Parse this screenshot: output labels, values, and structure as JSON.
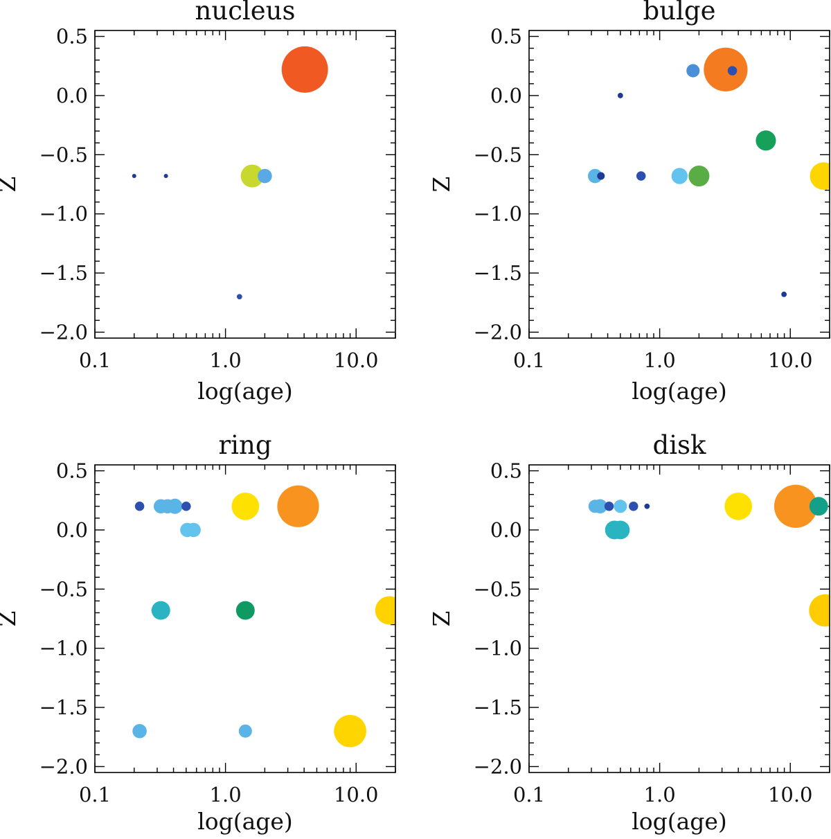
{
  "chart_data": [
    {
      "type": "scatter",
      "title": "nucleus",
      "xlabel": "log(age)",
      "ylabel": "Z",
      "xscale": "log",
      "xlim": [
        0.1,
        20.0
      ],
      "ylim": [
        -2.05,
        0.55
      ],
      "xticks": [
        {
          "value": 0.1,
          "label": "0.1"
        },
        {
          "value": 1.0,
          "label": "1.0"
        },
        {
          "value": 10.0,
          "label": "10.0"
        }
      ],
      "yticks": [
        {
          "value": 0.5,
          "label": "0.5"
        },
        {
          "value": 0.0,
          "label": "0.0"
        },
        {
          "value": -0.5,
          "label": "−0.5"
        },
        {
          "value": -1.0,
          "label": "−1.0"
        },
        {
          "value": -1.5,
          "label": "−1.5"
        },
        {
          "value": -2.0,
          "label": "−2.0"
        }
      ],
      "points": [
        {
          "age": 0.2,
          "z": -0.68,
          "weight": 0.3,
          "color": "#1f3a93"
        },
        {
          "age": 0.35,
          "z": -0.68,
          "weight": 0.3,
          "color": "#1f3a93"
        },
        {
          "age": 1.28,
          "z": -1.7,
          "weight": 0.5,
          "color": "#2c4fb0"
        },
        {
          "age": 1.6,
          "z": -0.68,
          "weight": 9,
          "color": "#c8d82e"
        },
        {
          "age": 2.0,
          "z": -0.68,
          "weight": 3.5,
          "color": "#5aa9e6"
        },
        {
          "age": 4.05,
          "z": 0.22,
          "weight": 37,
          "color": "#f05a22"
        }
      ]
    },
    {
      "type": "scatter",
      "title": "bulge",
      "xlabel": "log(age)",
      "ylabel": "Z",
      "xscale": "log",
      "xlim": [
        0.1,
        20.0
      ],
      "ylim": [
        -2.05,
        0.55
      ],
      "xticks": [
        {
          "value": 0.1,
          "label": "0.1"
        },
        {
          "value": 1.0,
          "label": "1.0"
        },
        {
          "value": 10.0,
          "label": "10.0"
        }
      ],
      "yticks": [
        {
          "value": 0.5,
          "label": "0.5"
        },
        {
          "value": 0.0,
          "label": "0.0"
        },
        {
          "value": -0.5,
          "label": "−0.5"
        },
        {
          "value": -1.0,
          "label": "−1.0"
        },
        {
          "value": -1.5,
          "label": "−1.5"
        },
        {
          "value": -2.0,
          "label": "−2.0"
        }
      ],
      "points": [
        {
          "age": 0.32,
          "z": -0.68,
          "weight": 3.5,
          "color": "#5ab4e6"
        },
        {
          "age": 0.355,
          "z": -0.68,
          "weight": 1,
          "color": "#1f3a93"
        },
        {
          "age": 0.5,
          "z": 0.0,
          "weight": 0.5,
          "color": "#1f3a93"
        },
        {
          "age": 0.72,
          "z": -0.68,
          "weight": 1.5,
          "color": "#2c4fb0"
        },
        {
          "age": 1.42,
          "z": -0.68,
          "weight": 4.5,
          "color": "#62c3ee"
        },
        {
          "age": 1.8,
          "z": 0.21,
          "weight": 3,
          "color": "#4a90d9"
        },
        {
          "age": 2.0,
          "z": -0.68,
          "weight": 7.5,
          "color": "#5aac44"
        },
        {
          "age": 3.2,
          "z": 0.22,
          "weight": 33,
          "color": "#f47b20"
        },
        {
          "age": 3.6,
          "z": 0.21,
          "weight": 1.5,
          "color": "#2c4fb0"
        },
        {
          "age": 6.5,
          "z": -0.38,
          "weight": 7,
          "color": "#16a05a"
        },
        {
          "age": 8.95,
          "z": -1.68,
          "weight": 0.5,
          "color": "#1f3a93"
        },
        {
          "age": 18.0,
          "z": -0.68,
          "weight": 13,
          "color": "#ffd500"
        }
      ]
    },
    {
      "type": "scatter",
      "title": "ring",
      "xlabel": "log(age)",
      "ylabel": "Z",
      "xscale": "log",
      "xlim": [
        0.1,
        20.0
      ],
      "ylim": [
        -2.05,
        0.55
      ],
      "xticks": [
        {
          "value": 0.1,
          "label": "0.1"
        },
        {
          "value": 1.0,
          "label": "1.0"
        },
        {
          "value": 10.0,
          "label": "10.0"
        }
      ],
      "yticks": [
        {
          "value": 0.5,
          "label": "0.5"
        },
        {
          "value": 0.0,
          "label": "0.0"
        },
        {
          "value": -0.5,
          "label": "−0.5"
        },
        {
          "value": -1.0,
          "label": "−1.0"
        },
        {
          "value": -1.5,
          "label": "−1.5"
        },
        {
          "value": -2.0,
          "label": "−2.0"
        }
      ],
      "points": [
        {
          "age": 0.22,
          "z": 0.2,
          "weight": 1.5,
          "color": "#2c4fb0"
        },
        {
          "age": 0.32,
          "z": 0.2,
          "weight": 3.5,
          "color": "#5ab4e6"
        },
        {
          "age": 0.36,
          "z": 0.2,
          "weight": 3.5,
          "color": "#5ab4e6"
        },
        {
          "age": 0.41,
          "z": 0.2,
          "weight": 4,
          "color": "#5ab4e6"
        },
        {
          "age": 0.5,
          "z": 0.2,
          "weight": 1.5,
          "color": "#2c4fb0"
        },
        {
          "age": 0.51,
          "z": 0.0,
          "weight": 3.5,
          "color": "#62c3ee"
        },
        {
          "age": 0.57,
          "z": 0.0,
          "weight": 3.5,
          "color": "#62c3ee"
        },
        {
          "age": 0.29,
          "z": -0.68,
          "weight": 1,
          "color": "#1f3a93"
        },
        {
          "age": 0.32,
          "z": -0.68,
          "weight": 6,
          "color": "#2ab3c0"
        },
        {
          "age": 1.42,
          "z": 0.2,
          "weight": 13,
          "color": "#ffe100"
        },
        {
          "age": 3.6,
          "z": 0.2,
          "weight": 30,
          "color": "#f7931e"
        },
        {
          "age": 1.42,
          "z": -0.68,
          "weight": 6,
          "color": "#0f9a63"
        },
        {
          "age": 18.0,
          "z": -0.68,
          "weight": 14,
          "color": "#ffd200"
        },
        {
          "age": 0.22,
          "z": -1.7,
          "weight": 3.5,
          "color": "#5ab4e6"
        },
        {
          "age": 1.42,
          "z": -1.7,
          "weight": 3,
          "color": "#5ab4e6"
        },
        {
          "age": 9.0,
          "z": -1.7,
          "weight": 18,
          "color": "#ffd500"
        }
      ]
    },
    {
      "type": "scatter",
      "title": "disk",
      "xlabel": "log(age)",
      "ylabel": "Z",
      "xscale": "log",
      "xlim": [
        0.1,
        20.0
      ],
      "ylim": [
        -2.05,
        0.55
      ],
      "xticks": [
        {
          "value": 0.1,
          "label": "0.1"
        },
        {
          "value": 1.0,
          "label": "1.0"
        },
        {
          "value": 10.0,
          "label": "10.0"
        }
      ],
      "yticks": [
        {
          "value": 0.5,
          "label": "0.5"
        },
        {
          "value": 0.0,
          "label": "0.0"
        },
        {
          "value": -0.5,
          "label": "−0.5"
        },
        {
          "value": -1.0,
          "label": "−1.0"
        },
        {
          "value": -1.5,
          "label": "−1.5"
        },
        {
          "value": -2.0,
          "label": "−2.0"
        }
      ],
      "points": [
        {
          "age": 0.32,
          "z": 0.2,
          "weight": 3,
          "color": "#5ab4e6"
        },
        {
          "age": 0.35,
          "z": 0.2,
          "weight": 3.5,
          "color": "#5ab4e6"
        },
        {
          "age": 0.41,
          "z": 0.2,
          "weight": 1.5,
          "color": "#2c4fb0"
        },
        {
          "age": 0.5,
          "z": 0.2,
          "weight": 3,
          "color": "#62c3ee"
        },
        {
          "age": 0.63,
          "z": 0.2,
          "weight": 1.5,
          "color": "#2c4fb0"
        },
        {
          "age": 0.8,
          "z": 0.2,
          "weight": 0.5,
          "color": "#1f3a93"
        },
        {
          "age": 0.45,
          "z": 0.0,
          "weight": 6,
          "color": "#2ab3c0"
        },
        {
          "age": 0.5,
          "z": 0.0,
          "weight": 6,
          "color": "#2ab3c0"
        },
        {
          "age": 4.0,
          "z": 0.2,
          "weight": 13,
          "color": "#ffe100"
        },
        {
          "age": 11.0,
          "z": 0.2,
          "weight": 32,
          "color": "#f7931e"
        },
        {
          "age": 16.5,
          "z": 0.2,
          "weight": 6,
          "color": "#139f88"
        },
        {
          "age": 18.5,
          "z": -0.68,
          "weight": 18,
          "color": "#ffcc00"
        }
      ]
    }
  ]
}
